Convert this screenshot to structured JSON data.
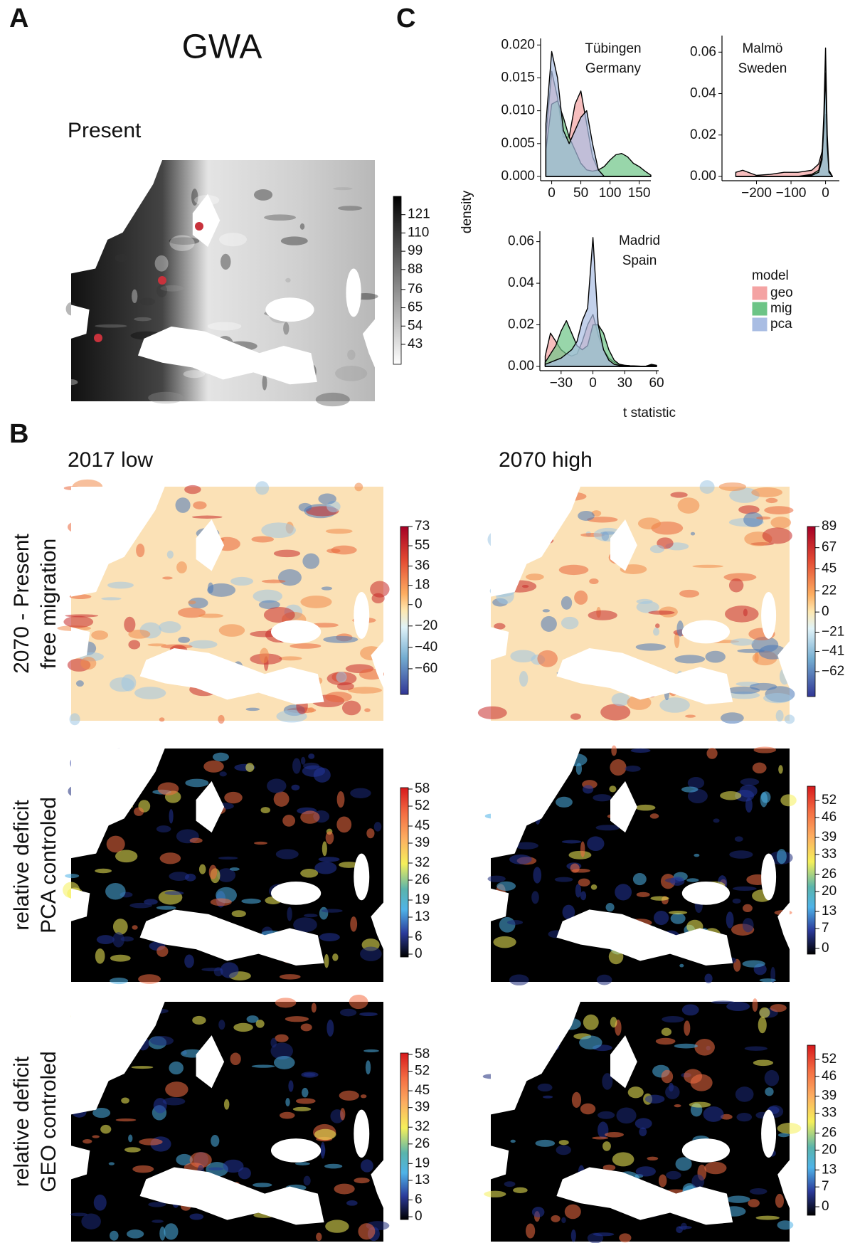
{
  "panel_labels": [
    "A",
    "B",
    "C"
  ],
  "panel_a": {
    "title": "GWA",
    "subtitle": "Present",
    "colorbar": {
      "lim": [
        31,
        132
      ],
      "ticks": [
        121,
        110,
        99,
        88,
        76,
        65,
        54,
        43
      ]
    }
  },
  "panel_b": {
    "columns": [
      "2017 low",
      "2070 high"
    ],
    "rows": [
      {
        "label": [
          "2070 - Present",
          "free migration"
        ],
        "colorbars": [
          {
            "lim": [
              -84,
              73
            ],
            "ticks": [
              73,
              55,
              36,
              18,
              0,
              {
                "value": -20,
                "label": "−20"
              },
              {
                "value": -40,
                "label": "−40"
              },
              {
                "value": -60,
                "label": "−60"
              }
            ]
          },
          {
            "lim": [
              -88,
              89
            ],
            "ticks": [
              89,
              67,
              45,
              22,
              0,
              {
                "value": -21,
                "label": "−21"
              },
              {
                "value": -41,
                "label": "−41"
              },
              {
                "value": -62,
                "label": "−62"
              }
            ]
          }
        ]
      },
      {
        "label": [
          "relative deficit",
          "PCA controled"
        ],
        "colorbars": [
          {
            "lim": [
              -1,
              58.5
            ],
            "ticks": [
              58,
              52,
              45,
              39,
              32,
              26,
              19,
              13,
              6,
              0
            ]
          },
          {
            "lim": [
              -2,
              57
            ],
            "ticks": [
              52,
              46,
              39,
              33,
              26,
              20,
              13,
              7,
              0
            ]
          }
        ]
      },
      {
        "label": [
          "relative deficit",
          "GEO controled"
        ],
        "colorbars": [
          {
            "lim": [
              -1,
              58.5
            ],
            "ticks": [
              58,
              52,
              45,
              39,
              32,
              26,
              19,
              13,
              6,
              0
            ]
          },
          {
            "lim": [
              -3,
              57
            ],
            "ticks": [
              52,
              46,
              39,
              33,
              26,
              20,
              13,
              7,
              0
            ]
          }
        ]
      }
    ]
  },
  "panel_c": {
    "ylabel": "density",
    "xlabel": "t statistic",
    "legend_title": "model"
  },
  "chart_data": [
    {
      "type": "density",
      "annotation": [
        "Tübingen",
        "Germany"
      ],
      "x": [
        -10,
        0,
        10,
        20,
        30,
        40,
        50,
        60,
        70,
        80,
        90,
        100,
        110,
        120,
        130,
        140,
        150,
        160,
        170
      ],
      "xlim": [
        -19,
        170
      ],
      "xticks": [
        0,
        50,
        100,
        150
      ],
      "ylim": [
        0,
        0.021
      ],
      "yticks": [
        {
          "value": 0,
          "label": "0.000"
        },
        {
          "value": 0.005,
          "label": "0.005"
        },
        {
          "value": 0.01,
          "label": "0.010"
        },
        {
          "value": 0.015,
          "label": "0.015"
        },
        {
          "value": 0.02,
          "label": "0.020"
        }
      ],
      "series": [
        {
          "name": "geo",
          "color": "#f4a3a3",
          "values": [
            0.006,
            0.016,
            0.012,
            0.006,
            0.006,
            0.011,
            0.013,
            0.008,
            0.003,
            0.001,
            0,
            0,
            0,
            0,
            0,
            0,
            0,
            0,
            0
          ]
        },
        {
          "name": "mig",
          "color": "#6cc486",
          "values": [
            0.004,
            0.011,
            0.0115,
            0.009,
            0.006,
            0.004,
            0.002,
            0.001,
            0.0008,
            0.001,
            0.0015,
            0.0025,
            0.0033,
            0.0035,
            0.003,
            0.002,
            0.0015,
            0.0008,
            0.0002
          ]
        },
        {
          "name": "pca",
          "color": "#a9bde3",
          "values": [
            0.008,
            0.019,
            0.015,
            0.007,
            0.005,
            0.007,
            0.009,
            0.01,
            0.005,
            0.001,
            0,
            0,
            0,
            0,
            0,
            0,
            0,
            0,
            0
          ]
        }
      ]
    },
    {
      "type": "density",
      "annotation": [
        "Malmö",
        "Sweden"
      ],
      "x": [
        -260,
        -240,
        -200,
        -160,
        -120,
        -80,
        -40,
        -20,
        -10,
        -5,
        0,
        5,
        10,
        20
      ],
      "xlim": [
        -300,
        40
      ],
      "xticks": [
        {
          "value": -200,
          "label": "−200"
        },
        {
          "value": -100,
          "label": "−100"
        },
        0
      ],
      "ylim": [
        0,
        0.068
      ],
      "yticks": [
        {
          "value": 0,
          "label": "0.00"
        },
        {
          "value": 0.02,
          "label": "0.02"
        },
        {
          "value": 0.04,
          "label": "0.04"
        },
        {
          "value": 0.06,
          "label": "0.06"
        }
      ],
      "series": [
        {
          "color": "#f4a3a3",
          "values": [
            0.002,
            0.003,
            0.0005,
            0.001,
            0.002,
            0.002,
            0.003,
            0.006,
            0.012,
            0.02,
            0.03,
            0.01,
            0.002,
            0
          ]
        },
        {
          "color": "#6cc486",
          "values": [
            0,
            0,
            0,
            0,
            0,
            0,
            0.001,
            0.003,
            0.01,
            0.03,
            0.062,
            0.02,
            0.003,
            0
          ]
        },
        {
          "color": "#a9bde3",
          "values": [
            0,
            0,
            0,
            0,
            0,
            0,
            0.0005,
            0.002,
            0.008,
            0.025,
            0.05,
            0.015,
            0.002,
            0
          ]
        }
      ]
    },
    {
      "type": "density",
      "annotation": [
        "Madrid",
        "Spain"
      ],
      "x": [
        -45,
        -40,
        -35,
        -30,
        -25,
        -20,
        -15,
        -10,
        -5,
        0,
        5,
        10,
        15,
        20,
        25,
        30,
        35,
        40,
        45,
        50,
        55,
        60
      ],
      "xlim": [
        -50,
        62
      ],
      "xticks": [
        {
          "value": -30,
          "label": "−30"
        },
        0,
        30,
        60
      ],
      "ylim": [
        0,
        0.065
      ],
      "yticks": [
        {
          "value": 0,
          "label": "0.00"
        },
        {
          "value": 0.02,
          "label": "0.02"
        },
        {
          "value": 0.04,
          "label": "0.04"
        },
        {
          "value": 0.06,
          "label": "0.06"
        }
      ],
      "series": [
        {
          "color": "#f4a3a3",
          "values": [
            0.005,
            0.016,
            0.012,
            0.008,
            0.006,
            0.005,
            0.006,
            0.012,
            0.02,
            0.025,
            0.015,
            0.008,
            0.004,
            0.002,
            0.001,
            0.0005,
            0.0003,
            0.0002,
            0.0001,
            0.0001,
            0.0005,
            0.0003
          ]
        },
        {
          "color": "#6cc486",
          "values": [
            0.002,
            0.006,
            0.01,
            0.017,
            0.022,
            0.016,
            0.01,
            0.008,
            0.01,
            0.02,
            0.02,
            0.016,
            0.008,
            0.003,
            0.001,
            0.0005,
            0.0003,
            0.0002,
            0.0001,
            0.0001,
            0.001,
            0.0005
          ]
        },
        {
          "color": "#a9bde3",
          "values": [
            0.001,
            0.002,
            0.003,
            0.004,
            0.006,
            0.008,
            0.012,
            0.022,
            0.028,
            0.062,
            0.02,
            0.008,
            0.003,
            0.001,
            0.0005,
            0.0003,
            0.0002,
            0.0001,
            0.0001,
            0.0001,
            0.0005,
            0.0002
          ]
        }
      ]
    }
  ]
}
